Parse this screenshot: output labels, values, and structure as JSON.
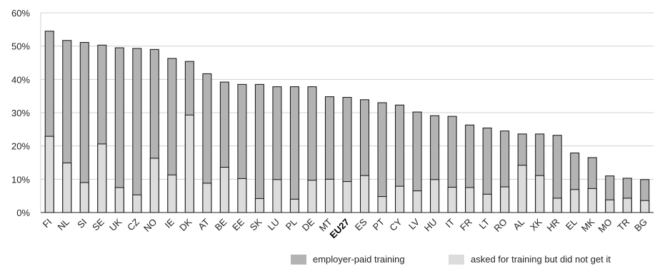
{
  "chart_data": {
    "type": "bar",
    "stacked": false,
    "overlay": true,
    "title": "",
    "xlabel": "",
    "ylabel": "",
    "ylim": [
      0,
      60
    ],
    "yticks": [
      "0%",
      "10%",
      "20%",
      "30%",
      "40%",
      "50%",
      "60%"
    ],
    "grid": true,
    "legend_position": "bottom-right",
    "categories": [
      "FI",
      "NL",
      "SI",
      "SE",
      "UK",
      "CZ",
      "NO",
      "IE",
      "DK",
      "AT",
      "BE",
      "EE",
      "SK",
      "LU",
      "PL",
      "DE",
      "MT",
      "EU27",
      "ES",
      "PT",
      "CY",
      "LV",
      "HU",
      "IT",
      "FR",
      "LT",
      "RO",
      "AL",
      "XK",
      "HR",
      "EL",
      "MK",
      "MO",
      "TR",
      "BG"
    ],
    "highlight_category": "EU27",
    "series": [
      {
        "name": "employer-paid training",
        "color": "#b3b3b3",
        "values": [
          54.5,
          51.7,
          51.1,
          50.3,
          49.5,
          49.3,
          49.0,
          46.3,
          45.4,
          41.7,
          39.2,
          38.5,
          38.5,
          37.8,
          37.8,
          37.8,
          34.8,
          34.6,
          33.9,
          33.0,
          32.3,
          30.2,
          29.1,
          28.9,
          26.3,
          25.4,
          24.5,
          23.6,
          23.6,
          23.2,
          17.9,
          16.5,
          11.0,
          10.3,
          9.9
        ]
      },
      {
        "name": "asked for training but did not get it",
        "color": "#dcdcdc",
        "values": [
          22.9,
          14.9,
          9.0,
          20.6,
          7.5,
          5.3,
          16.3,
          11.3,
          29.3,
          8.8,
          13.6,
          10.2,
          4.2,
          9.9,
          4.0,
          9.7,
          10.0,
          9.3,
          11.1,
          4.8,
          7.9,
          6.5,
          9.9,
          7.6,
          7.5,
          5.5,
          7.7,
          14.2,
          11.1,
          4.3,
          6.9,
          7.2,
          3.8,
          4.3,
          3.6
        ]
      }
    ]
  }
}
